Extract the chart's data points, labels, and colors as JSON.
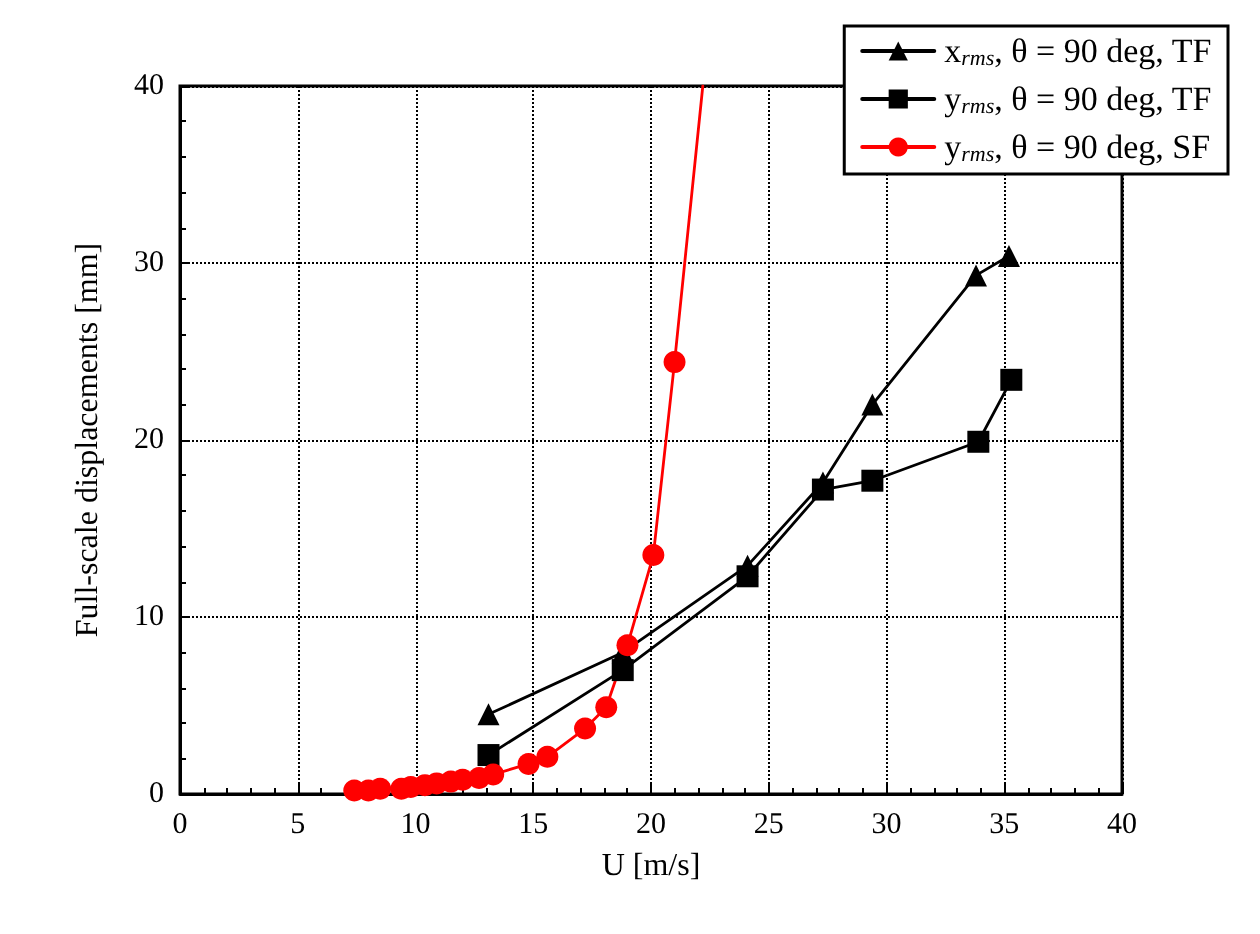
{
  "chart_data": {
    "type": "line",
    "xlabel": "U [m/s]",
    "ylabel": "Full-scale displacements [mm]",
    "xlim": [
      0,
      40
    ],
    "xticks": [
      0,
      5,
      10,
      15,
      20,
      25,
      30,
      35,
      40
    ],
    "ylim": [
      0,
      40
    ],
    "yticks": [
      0,
      10,
      20,
      30,
      40
    ],
    "grid": true,
    "legend": "top right",
    "line_style": "solid",
    "series": [
      {
        "name": "x$_{rms}$, θ = 90 deg, TF",
        "color": "#000000",
        "marker": "triangle",
        "x": [
          13.1,
          18.8,
          24.1,
          27.3,
          29.4,
          33.8,
          35.2
        ],
        "values": [
          4.5,
          8.0,
          12.9,
          17.6,
          22.0,
          29.3,
          30.4
        ]
      },
      {
        "name": "y$_{rms}$, θ = 90 deg, TF",
        "color": "#000000",
        "marker": "square",
        "x": [
          13.1,
          18.8,
          24.1,
          27.3,
          29.4,
          33.9,
          35.3
        ],
        "values": [
          2.2,
          7.0,
          12.3,
          17.2,
          17.7,
          19.9,
          23.4
        ]
      },
      {
        "name": "y$_{rms}$, θ = 90 deg, SF",
        "color": "#ff0000",
        "marker": "circle",
        "x": [
          7.4,
          8.0,
          8.5,
          9.4,
          9.8,
          10.4,
          10.9,
          11.5,
          12.0,
          12.7,
          13.3,
          14.8,
          15.6,
          17.2,
          18.1,
          19.0,
          20.1,
          21.0,
          22.2
        ],
        "values": [
          0.2,
          0.2,
          0.3,
          0.3,
          0.4,
          0.5,
          0.6,
          0.7,
          0.8,
          0.9,
          1.1,
          1.7,
          2.1,
          3.7,
          4.9,
          8.4,
          13.5,
          24.4,
          40
        ]
      }
    ]
  }
}
